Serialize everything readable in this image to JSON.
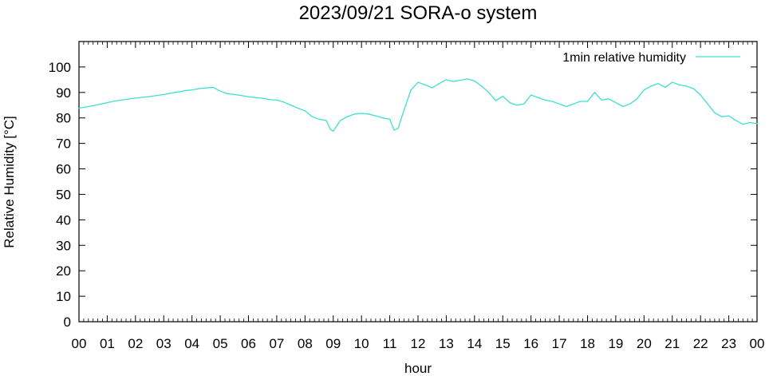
{
  "chart_data": {
    "type": "line",
    "title": "2023/09/21 SORA-o system",
    "xlabel": "hour",
    "ylabel": "Relative Humidity [°C]",
    "xlim": [
      0,
      24
    ],
    "ylim": [
      0,
      110
    ],
    "grid": false,
    "legend_position": "top-right",
    "x_tick_labels": [
      "00",
      "01",
      "02",
      "03",
      "04",
      "05",
      "06",
      "07",
      "08",
      "09",
      "10",
      "11",
      "12",
      "13",
      "14",
      "15",
      "16",
      "17",
      "18",
      "19",
      "20",
      "21",
      "22",
      "23",
      "00"
    ],
    "y_tick_labels": [
      "0",
      "10",
      "20",
      "30",
      "40",
      "50",
      "60",
      "70",
      "80",
      "90",
      "100"
    ],
    "series": [
      {
        "name": "1min relative humidity",
        "color": "#40e0d0",
        "x": [
          0.0,
          0.25,
          0.5,
          0.75,
          1.0,
          1.25,
          1.5,
          1.75,
          2.0,
          2.25,
          2.5,
          2.75,
          3.0,
          3.25,
          3.5,
          3.75,
          4.0,
          4.25,
          4.5,
          4.75,
          5.0,
          5.25,
          5.5,
          5.75,
          6.0,
          6.25,
          6.5,
          6.75,
          7.0,
          7.25,
          7.5,
          7.75,
          8.0,
          8.25,
          8.5,
          8.75,
          8.9,
          9.0,
          9.1,
          9.25,
          9.5,
          9.75,
          10.0,
          10.25,
          10.5,
          10.75,
          11.0,
          11.15,
          11.3,
          11.5,
          11.75,
          12.0,
          12.25,
          12.5,
          12.75,
          13.0,
          13.25,
          13.5,
          13.75,
          14.0,
          14.25,
          14.5,
          14.75,
          15.0,
          15.25,
          15.5,
          15.75,
          16.0,
          16.25,
          16.5,
          16.75,
          17.0,
          17.25,
          17.5,
          17.75,
          18.0,
          18.25,
          18.5,
          18.75,
          19.0,
          19.25,
          19.5,
          19.75,
          20.0,
          20.25,
          20.5,
          20.75,
          21.0,
          21.25,
          21.5,
          21.75,
          22.0,
          22.25,
          22.5,
          22.75,
          23.0,
          23.25,
          23.5,
          23.75,
          24.0
        ],
        "values": [
          83.8,
          84.3,
          84.8,
          85.4,
          86.0,
          86.6,
          87.0,
          87.4,
          87.8,
          88.1,
          88.4,
          88.8,
          89.2,
          89.7,
          90.2,
          90.7,
          91.0,
          91.5,
          91.8,
          92.0,
          90.5,
          89.5,
          89.2,
          88.8,
          88.3,
          88.0,
          87.7,
          87.2,
          87.0,
          86.2,
          85.0,
          83.8,
          82.8,
          80.5,
          79.5,
          79.0,
          75.5,
          74.8,
          76.5,
          79.0,
          80.5,
          81.5,
          81.8,
          81.5,
          80.8,
          80.0,
          79.5,
          75.2,
          76.0,
          83.0,
          91.0,
          94.0,
          93.0,
          91.8,
          93.5,
          95.0,
          94.3,
          94.8,
          95.3,
          94.5,
          92.5,
          90.0,
          86.8,
          88.5,
          86.0,
          85.0,
          85.5,
          89.0,
          88.0,
          87.0,
          86.5,
          85.5,
          84.5,
          85.5,
          86.5,
          86.5,
          90.0,
          87.0,
          87.5,
          86.0,
          84.5,
          85.5,
          87.5,
          91.0,
          92.5,
          93.5,
          92.0,
          94.0,
          93.0,
          92.5,
          91.5,
          89.0,
          85.5,
          82.0,
          80.5,
          80.8,
          79.0,
          77.5,
          78.2,
          77.8
        ]
      }
    ]
  }
}
